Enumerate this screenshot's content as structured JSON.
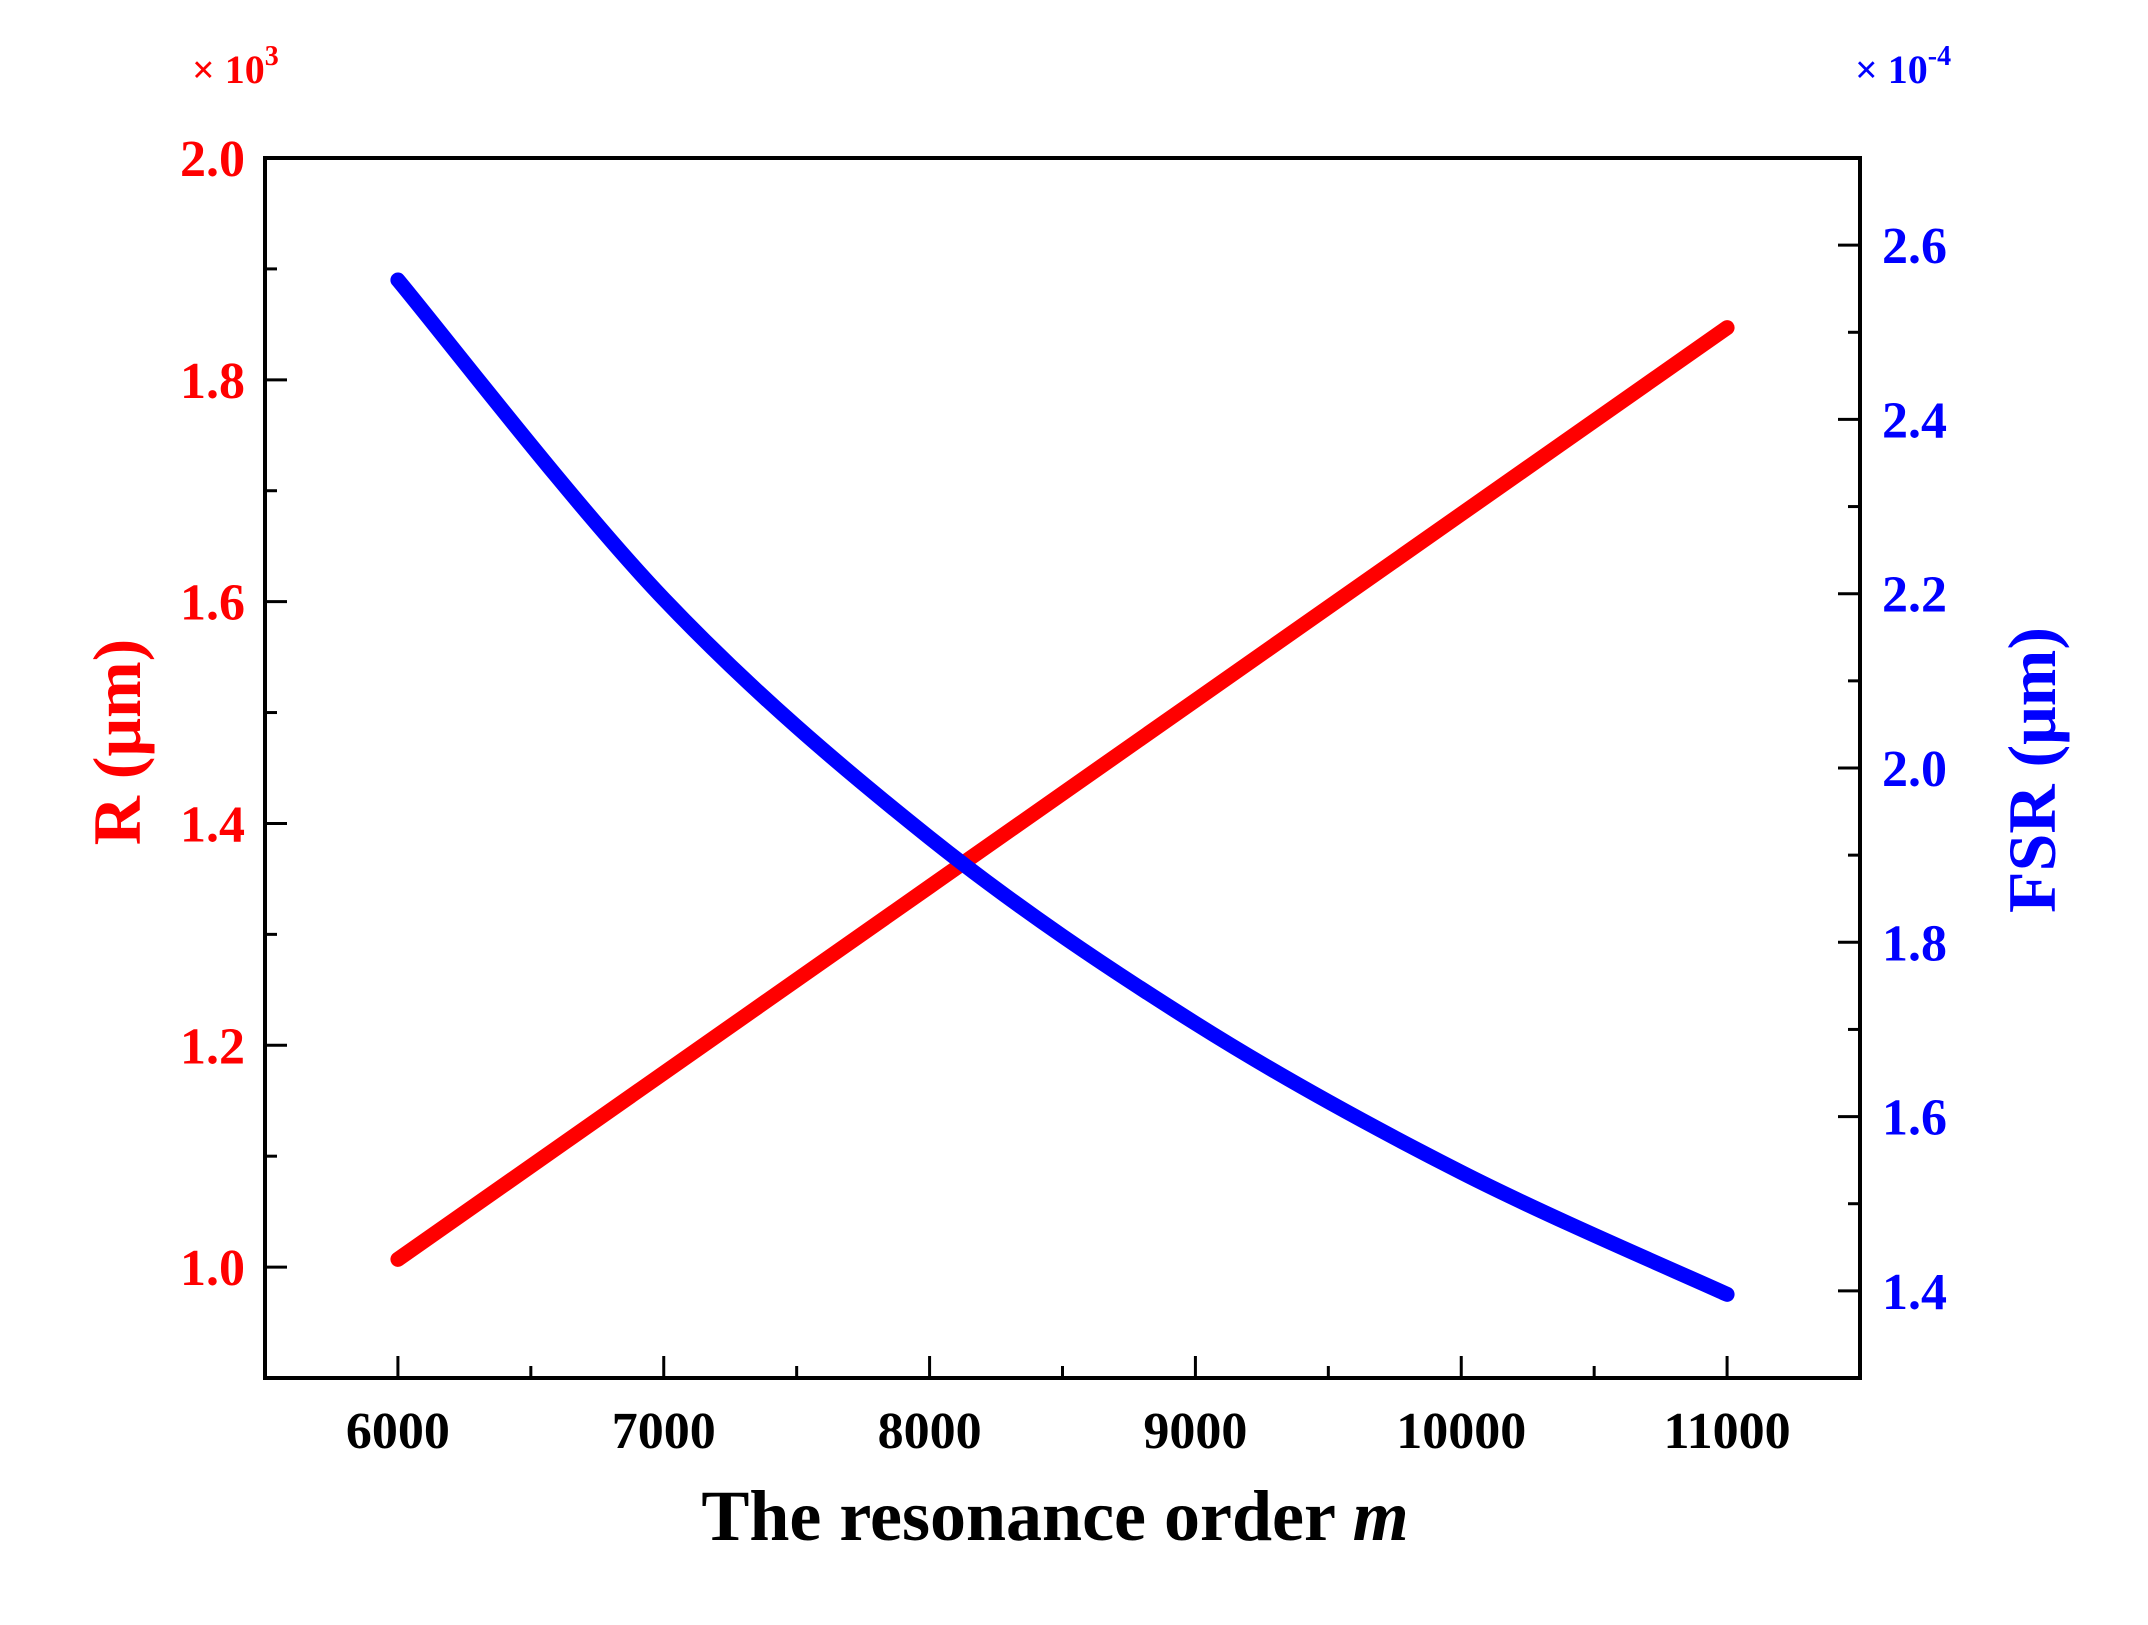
{
  "chart_data": {
    "type": "line",
    "title": "",
    "xlabel": "The resonance order",
    "xlabel_italic_symbol": "m",
    "xlim": [
      5500,
      11500
    ],
    "x_ticks": [
      6000,
      7000,
      8000,
      9000,
      10000,
      11000
    ],
    "x_tick_labels": [
      "6000",
      "7000",
      "8000",
      "9000",
      "10000",
      "11000"
    ],
    "y_left": {
      "label": "R (μm)",
      "multiplier_label": "× 10",
      "multiplier_exp": "3",
      "lim": [
        0.9,
        2.0
      ],
      "ticks": [
        1.0,
        1.2,
        1.4,
        1.6,
        1.8,
        2.0
      ],
      "tick_labels": [
        "1.0",
        "1.2",
        "1.4",
        "1.6",
        "1.8",
        "2.0"
      ],
      "color": "#ff0000"
    },
    "y_right": {
      "label": "FSR (μm)",
      "multiplier_label": "× 10",
      "multiplier_exp": "-4",
      "lim": [
        1.3,
        2.7
      ],
      "ticks": [
        1.4,
        1.6,
        1.8,
        2.0,
        2.2,
        2.4,
        2.6
      ],
      "tick_labels": [
        "1.4",
        "1.6",
        "1.8",
        "2.0",
        "2.2",
        "2.4",
        "2.6"
      ],
      "color": "#0000ff"
    },
    "grid": false,
    "legend": "none",
    "series": [
      {
        "axis": "left",
        "color": "#ff0000",
        "x": [
          6000,
          7000,
          8000,
          9000,
          10000,
          11000
        ],
        "values": [
          1.007,
          1.175,
          1.343,
          1.511,
          1.679,
          1.847
        ]
      },
      {
        "axis": "right",
        "color": "#0000ff",
        "x": [
          6000,
          7000,
          8000,
          9000,
          10000,
          11000
        ],
        "values": [
          2.56,
          2.194,
          1.92,
          1.707,
          1.536,
          1.396
        ]
      }
    ]
  }
}
